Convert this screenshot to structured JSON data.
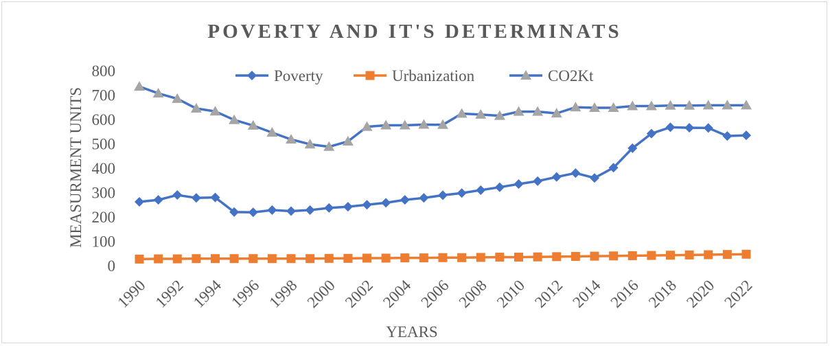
{
  "chart_data": {
    "type": "line",
    "title": "POVERTY AND IT'S DETERMINATS",
    "xlabel": "YEARS",
    "ylabel": "MEASURMENT UNITS",
    "ylim": [
      0,
      800
    ],
    "yticks": [
      0,
      100,
      200,
      300,
      400,
      500,
      600,
      700,
      800
    ],
    "grid": false,
    "legend_position": "top",
    "x": [
      1990,
      1991,
      1992,
      1993,
      1994,
      1995,
      1996,
      1997,
      1998,
      1999,
      2000,
      2001,
      2002,
      2003,
      2004,
      2005,
      2006,
      2007,
      2008,
      2009,
      2010,
      2011,
      2012,
      2013,
      2014,
      2015,
      2016,
      2017,
      2018,
      2019,
      2020,
      2021,
      2022
    ],
    "xtick_labels": [
      "1990",
      "1992",
      "1994",
      "1996",
      "1998",
      "2000",
      "2002",
      "2004",
      "2006",
      "2008",
      "2010",
      "2012",
      "2014",
      "2016",
      "2018",
      "2020",
      "2022"
    ],
    "series": [
      {
        "name": "Poverty",
        "color": "#4472c4",
        "line_color": "#4472c4",
        "marker": "diamond",
        "values": [
          262,
          270,
          290,
          278,
          280,
          220,
          219,
          228,
          224,
          228,
          237,
          242,
          250,
          258,
          270,
          278,
          289,
          298,
          310,
          322,
          335,
          347,
          364,
          380,
          360,
          402,
          482,
          542,
          568,
          566,
          565,
          532,
          535
        ]
      },
      {
        "name": "Urbanization",
        "color": "#ed7d31",
        "line_color": "#ed7d31",
        "marker": "square",
        "values": [
          27,
          28,
          28,
          29,
          29,
          29,
          29,
          29,
          29,
          29,
          30,
          30,
          31,
          31,
          32,
          32,
          33,
          33,
          34,
          35,
          35,
          36,
          37,
          38,
          39,
          40,
          41,
          42,
          43,
          44,
          45,
          46,
          47
        ]
      },
      {
        "name": "CO2Kt",
        "color": "#a5a5a5",
        "line_color": "#4472c4",
        "marker": "triangle",
        "values": [
          735,
          707,
          685,
          645,
          633,
          598,
          575,
          546,
          518,
          498,
          488,
          510,
          570,
          576,
          576,
          579,
          578,
          624,
          620,
          615,
          632,
          632,
          625,
          650,
          648,
          648,
          655,
          655,
          657,
          657,
          658,
          658,
          658
        ]
      }
    ]
  }
}
